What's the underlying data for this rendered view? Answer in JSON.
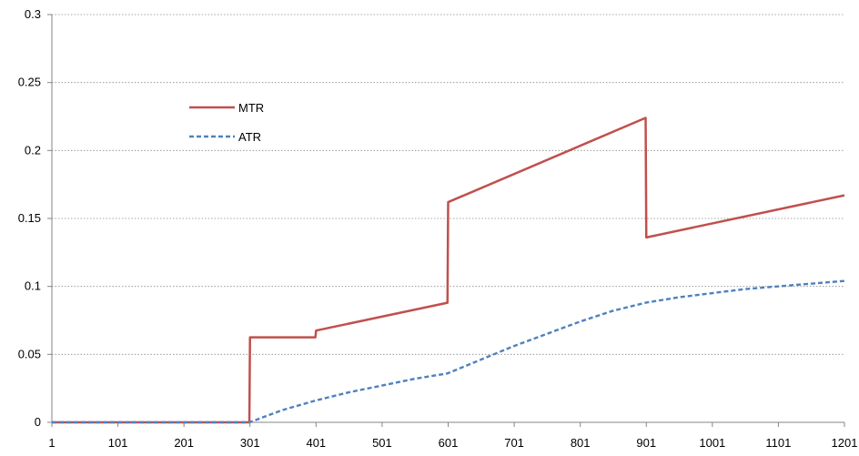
{
  "chart_data": {
    "type": "line",
    "title": "",
    "xlabel": "",
    "ylabel": "",
    "xlim": [
      1,
      1201
    ],
    "ylim": [
      0,
      0.3
    ],
    "grid": true,
    "legend_placement": "upper-left inside plot",
    "x_ticks": [
      "1",
      "101",
      "201",
      "301",
      "401",
      "501",
      "601",
      "701",
      "801",
      "901",
      "1001",
      "1101",
      "1201"
    ],
    "y_ticks": [
      "0",
      "0.05",
      "0.1",
      "0.15",
      "0.2",
      "0.25",
      "0.3"
    ],
    "series": [
      {
        "name": "MTR",
        "color": "#c0504d",
        "style": "solid",
        "points": [
          [
            1,
            0
          ],
          [
            300,
            0
          ],
          [
            301,
            0.0625
          ],
          [
            400,
            0.0625
          ],
          [
            401,
            0.0675
          ],
          [
            600,
            0.088
          ],
          [
            601,
            0.162
          ],
          [
            900,
            0.224
          ],
          [
            901,
            0.136
          ],
          [
            1201,
            0.167
          ]
        ]
      },
      {
        "name": "ATR",
        "color": "#4f81bd",
        "style": "dashed",
        "points": [
          [
            1,
            0
          ],
          [
            300,
            0
          ],
          [
            350,
            0.009
          ],
          [
            400,
            0.016
          ],
          [
            450,
            0.022
          ],
          [
            500,
            0.027
          ],
          [
            550,
            0.032
          ],
          [
            600,
            0.036
          ],
          [
            650,
            0.046
          ],
          [
            700,
            0.056
          ],
          [
            750,
            0.065
          ],
          [
            800,
            0.074
          ],
          [
            850,
            0.082
          ],
          [
            900,
            0.088
          ],
          [
            950,
            0.092
          ],
          [
            1000,
            0.095
          ],
          [
            1050,
            0.098
          ],
          [
            1100,
            0.1
          ],
          [
            1150,
            0.102
          ],
          [
            1201,
            0.104
          ]
        ]
      }
    ]
  }
}
